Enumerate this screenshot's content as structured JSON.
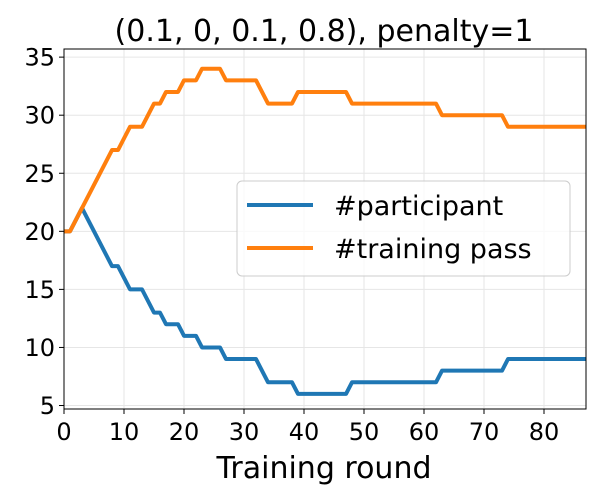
{
  "chart_data": {
    "type": "line",
    "title": "(0.1, 0, 0.1, 0.8), penalty=1",
    "xlabel": "Training round",
    "ylabel": "",
    "xlim": [
      0,
      87
    ],
    "ylim": [
      4.7,
      35.7
    ],
    "xticks": [
      0,
      10,
      20,
      30,
      40,
      50,
      60,
      70,
      80
    ],
    "yticks": [
      5,
      10,
      15,
      20,
      25,
      30,
      35
    ],
    "grid": true,
    "legend_position": "center-right",
    "series": [
      {
        "name": "#participant",
        "color": "#1f77b4",
        "points": [
          [
            0,
            20
          ],
          [
            1,
            20
          ],
          [
            3,
            22
          ],
          [
            8,
            17
          ],
          [
            9,
            17
          ],
          [
            11,
            15
          ],
          [
            13,
            15
          ],
          [
            15,
            13
          ],
          [
            16,
            13
          ],
          [
            17,
            12
          ],
          [
            19,
            12
          ],
          [
            20,
            11
          ],
          [
            22,
            11
          ],
          [
            23,
            10
          ],
          [
            26,
            10
          ],
          [
            27,
            9
          ],
          [
            32,
            9
          ],
          [
            34,
            7
          ],
          [
            38,
            7
          ],
          [
            39,
            6
          ],
          [
            47,
            6
          ],
          [
            48,
            7
          ],
          [
            62,
            7
          ],
          [
            63,
            8
          ],
          [
            73,
            8
          ],
          [
            74,
            9
          ],
          [
            87,
            9
          ]
        ]
      },
      {
        "name": "#training pass",
        "color": "#ff7f0e",
        "points": [
          [
            0,
            20
          ],
          [
            1,
            20
          ],
          [
            8,
            27
          ],
          [
            9,
            27
          ],
          [
            11,
            29
          ],
          [
            13,
            29
          ],
          [
            15,
            31
          ],
          [
            16,
            31
          ],
          [
            17,
            32
          ],
          [
            19,
            32
          ],
          [
            20,
            33
          ],
          [
            22,
            33
          ],
          [
            23,
            34
          ],
          [
            26,
            34
          ],
          [
            27,
            33
          ],
          [
            32,
            33
          ],
          [
            34,
            31
          ],
          [
            38,
            31
          ],
          [
            39,
            32
          ],
          [
            47,
            32
          ],
          [
            48,
            31
          ],
          [
            62,
            31
          ],
          [
            63,
            30
          ],
          [
            73,
            30
          ],
          [
            74,
            29
          ],
          [
            87,
            29
          ]
        ]
      }
    ]
  }
}
